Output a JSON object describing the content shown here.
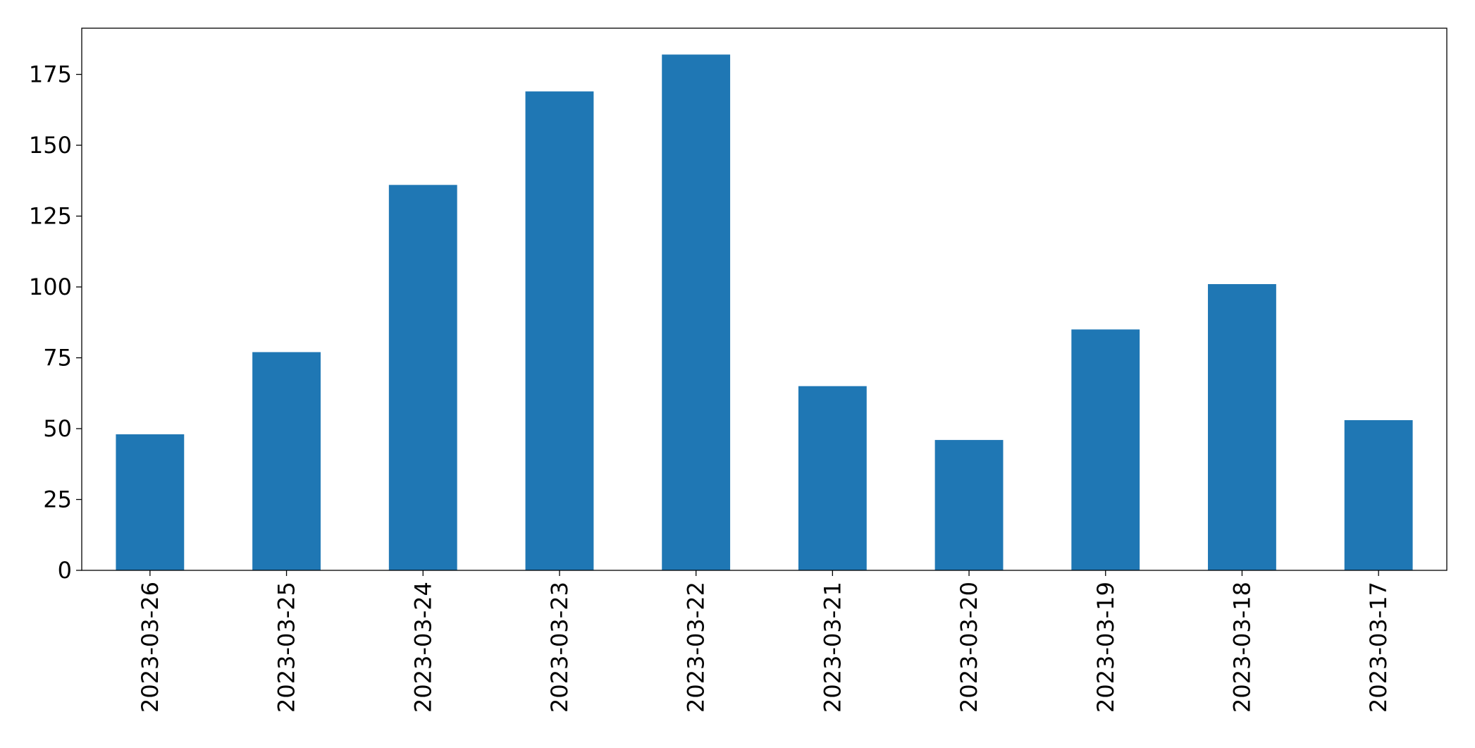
{
  "chart_data": {
    "type": "bar",
    "categories": [
      "2023-03-26",
      "2023-03-25",
      "2023-03-24",
      "2023-03-23",
      "2023-03-22",
      "2023-03-21",
      "2023-03-20",
      "2023-03-19",
      "2023-03-18",
      "2023-03-17"
    ],
    "values": [
      48,
      77,
      136,
      169,
      182,
      65,
      46,
      85,
      101,
      53
    ],
    "color": "#1f77b4",
    "ylim": [
      0,
      191.3
    ],
    "yticks": [
      0,
      25,
      50,
      75,
      100,
      125,
      150,
      175
    ],
    "grid": false
  }
}
